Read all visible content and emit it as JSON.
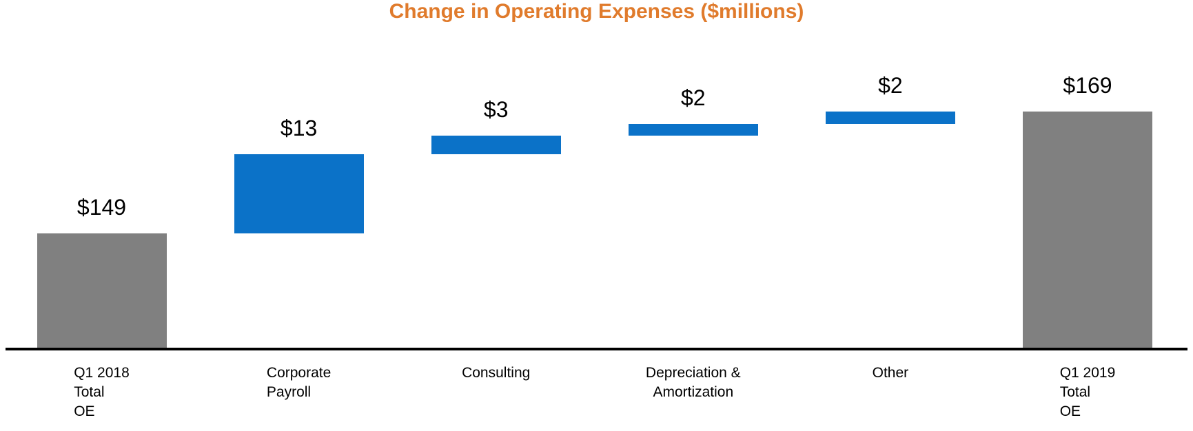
{
  "chart_data": {
    "type": "bar",
    "subtype": "waterfall",
    "title": "Change in Operating Expenses ($millions)",
    "title_color": "#e07b2c",
    "xlabel": "",
    "ylabel": "",
    "y_axis_visible": false,
    "gridlines": false,
    "legend": "none",
    "baseline_color": "#000000",
    "implied_axis_min": 130,
    "implied_axis_max": 173,
    "colors": {
      "total_bar": "#808080",
      "delta_bar": "#0b72c8"
    },
    "categories": [
      "Q1 2018 Total OE",
      "Corporate Payroll",
      "Consulting",
      "Depreciation & Amortization",
      "Other",
      "Q1 2019 Total OE"
    ],
    "values": [
      149,
      13,
      3,
      2,
      2,
      169
    ],
    "cumulative": [
      149,
      162,
      165,
      167,
      169,
      169
    ],
    "bars": [
      {
        "id": "q1-2018-total-oe",
        "category_lines": [
          "Q1 2018",
          "Total",
          "OE"
        ],
        "label_align": "left",
        "kind": "total",
        "value": 149,
        "data_label": "$149",
        "color": "#808080"
      },
      {
        "id": "corporate-payroll",
        "category_lines": [
          "Corporate",
          "Payroll"
        ],
        "label_align": "left",
        "kind": "delta",
        "value": 13,
        "data_label": "$13",
        "color": "#0b72c8"
      },
      {
        "id": "consulting",
        "category_lines": [
          "Consulting"
        ],
        "label_align": "center",
        "kind": "delta",
        "value": 3,
        "data_label": "$3",
        "color": "#0b72c8"
      },
      {
        "id": "depreciation-amortization",
        "category_lines": [
          "Depreciation &",
          "Amortization"
        ],
        "label_align": "center",
        "kind": "delta",
        "value": 2,
        "data_label": "$2",
        "color": "#0b72c8"
      },
      {
        "id": "other",
        "category_lines": [
          "Other"
        ],
        "label_align": "center",
        "kind": "delta",
        "value": 2,
        "data_label": "$2",
        "color": "#0b72c8"
      },
      {
        "id": "q1-2019-total-oe",
        "category_lines": [
          "Q1 2019",
          "Total",
          "OE"
        ],
        "label_align": "left",
        "kind": "total",
        "value": 169,
        "data_label": "$169",
        "color": "#808080"
      }
    ]
  }
}
